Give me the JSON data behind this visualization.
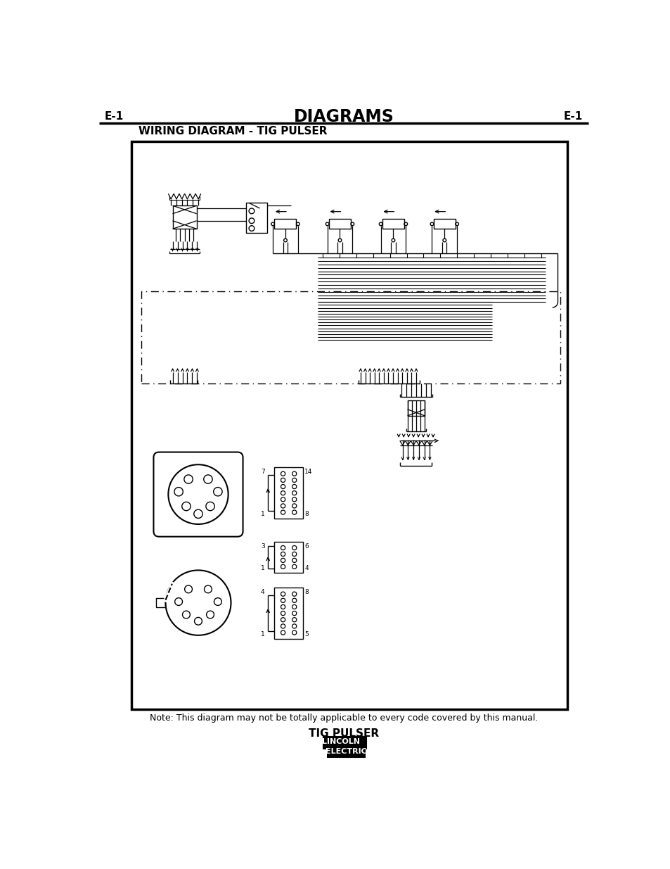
{
  "page_title": "DIAGRAMS",
  "page_label": "E-1",
  "subtitle": "WIRING DIAGRAM - TIG PULSER",
  "note": "Note: This diagram may not be totally applicable to every code covered by this manual.",
  "footer_title": "TIG PULSER",
  "bg_color": "#ffffff"
}
